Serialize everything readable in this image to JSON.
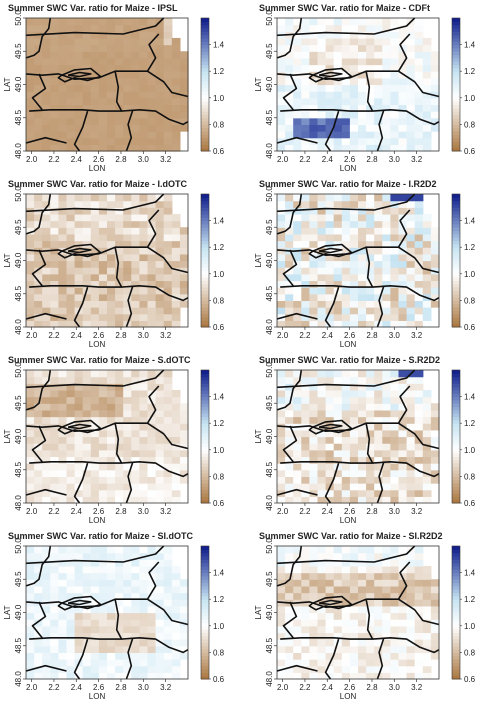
{
  "figure": {
    "panels": [
      {
        "id": "ipsl",
        "title": "Summer SWC Var. ratio for Maize - IPSL",
        "pattern": "ipsl"
      },
      {
        "id": "cdft",
        "title": "Summer SWC Var. ratio for Maize - CDFt",
        "pattern": "cdft"
      },
      {
        "id": "idotc",
        "title": "Summer SWC Var. ratio for Maize - I.dOTC",
        "pattern": "idotc"
      },
      {
        "id": "ir2d2",
        "title": "Summer SWC Var. ratio for Maize - I.R2D2",
        "pattern": "ir2d2"
      },
      {
        "id": "sdotc",
        "title": "Summer SWC Var. ratio for Maize - S.dOTC",
        "pattern": "sdotc"
      },
      {
        "id": "sr2d2",
        "title": "Summer SWC Var. ratio for Maize - S.R2D2",
        "pattern": "sr2d2"
      },
      {
        "id": "sidotc",
        "title": "Summer SWC Var. ratio for Maize - SI.dOTC",
        "pattern": "sidotc"
      },
      {
        "id": "sir2d2",
        "title": "Summer SWC Var. ratio for Maize - SI.R2D2",
        "pattern": "sir2d2"
      }
    ]
  },
  "chart_data": {
    "type": "heatmap",
    "xlabel": "LON",
    "ylabel": "LAT",
    "xlim": [
      1.95,
      3.4
    ],
    "ylim": [
      48.0,
      50.0
    ],
    "x_ticks": [
      "2.0",
      "2.2",
      "2.4",
      "2.6",
      "2.8",
      "3.0",
      "3.2"
    ],
    "y_ticks": [
      "48.0",
      "48.5",
      "49.0",
      "49.5",
      "50.0"
    ],
    "colorbar": {
      "range": [
        0.6,
        1.6
      ],
      "ticks": [
        "0.6",
        "0.8",
        "1.0",
        "1.2",
        "1.4"
      ],
      "colors": {
        "low": "#a9753e",
        "mid": "#ffffff",
        "high": "#0d1a8a"
      }
    },
    "grid": {
      "nx": 20,
      "ny": 20
    },
    "approx_mean_ratio": {
      "IPSL": 0.73,
      "CDFt": 1.05,
      "I.dOTC": 0.86,
      "I.R2D2": 1.0,
      "S.dOTC": 0.86,
      "S.R2D2": 0.95,
      "SI.dOTC": 1.02,
      "SI.R2D2": 0.93
    }
  }
}
